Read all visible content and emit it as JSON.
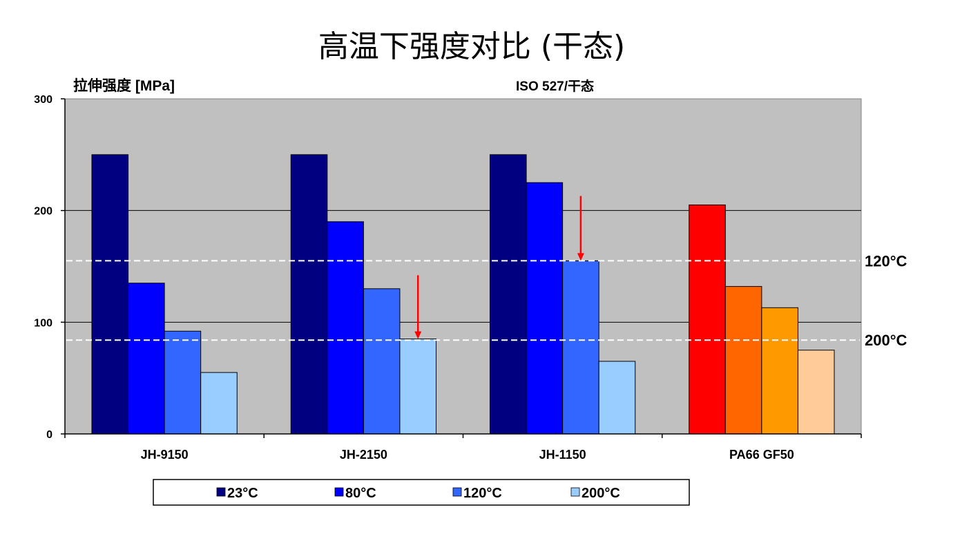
{
  "chart_data": {
    "type": "bar",
    "title": "高温下强度对比 (干态)",
    "subtitle": "ISO 527/干态",
    "ylabel": "拉伸强度 [MPa]",
    "xlabel": "",
    "ylim": [
      0,
      300
    ],
    "yticks": [
      0,
      100,
      200,
      300
    ],
    "grid": true,
    "legend_position": "bottom",
    "categories": [
      "JH-9150",
      "JH-2150",
      "JH-1150",
      "PA66 GF50"
    ],
    "series": [
      {
        "name": "23°C",
        "values": [
          250,
          250,
          250,
          205
        ],
        "colors": [
          "#000080",
          "#000080",
          "#000080",
          "#FF0000"
        ]
      },
      {
        "name": "80°C",
        "values": [
          135,
          190,
          225,
          132
        ],
        "colors": [
          "#0000FF",
          "#0000FF",
          "#0000FF",
          "#FF6600"
        ]
      },
      {
        "name": "120°C",
        "values": [
          92,
          130,
          155,
          113
        ],
        "colors": [
          "#3366FF",
          "#3366FF",
          "#3366FF",
          "#FF9900"
        ]
      },
      {
        "name": "200°C",
        "values": [
          55,
          85,
          65,
          75
        ],
        "colors": [
          "#99CCFF",
          "#99CCFF",
          "#99CCFF",
          "#FFCC99"
        ]
      }
    ],
    "reference_lines": [
      {
        "value": 155,
        "label": "120°C"
      },
      {
        "value": 84,
        "label": "200°C"
      }
    ],
    "annotations": [
      {
        "category_index": 1,
        "series_index": 3,
        "from": 142,
        "to": 85
      },
      {
        "category_index": 2,
        "series_index": 2,
        "from": 213,
        "to": 155
      }
    ],
    "colors": {
      "plot_background": "#C0C0C0",
      "reference_line": "#FFFFFF",
      "arrow": "#FF0000"
    }
  }
}
